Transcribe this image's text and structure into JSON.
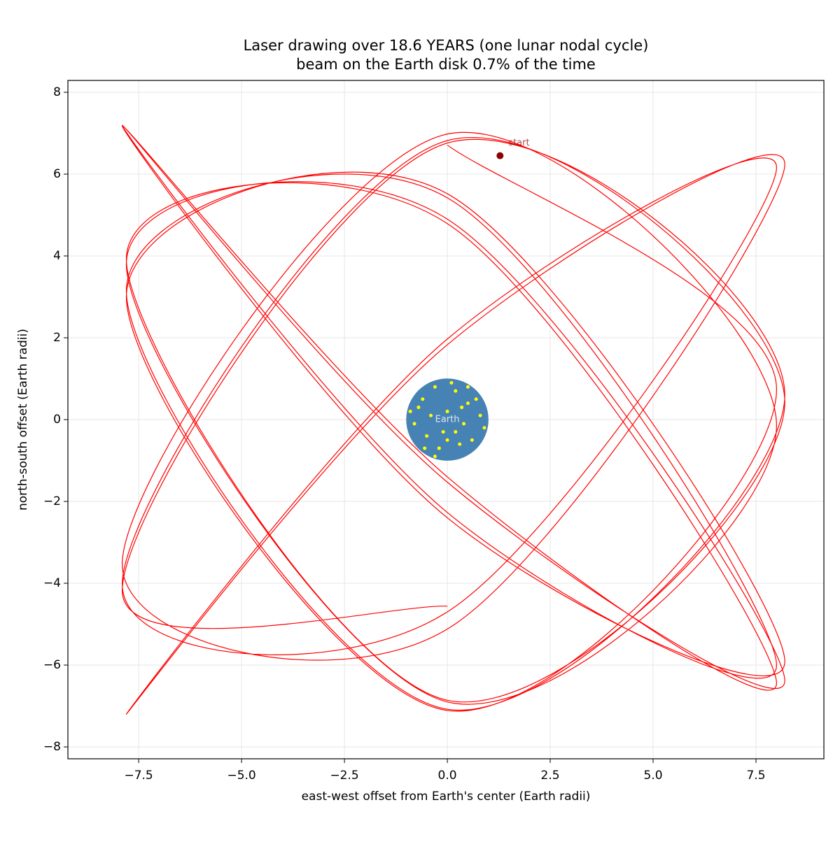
{
  "chart_data": {
    "type": "line",
    "title": "Laser drawing over 18.6 YEARS (one lunar nodal cycle)",
    "subtitle": "beam on the Earth disk 0.7% of the time",
    "xlabel": "east-west offset from Earth's center  (Earth radii)",
    "ylabel": "north-south offset  (Earth radii)",
    "xlim": [
      -9.22,
      9.15
    ],
    "ylim": [
      -8.29,
      8.29
    ],
    "xticks": [
      {
        "value": -7.5,
        "label": "−7.5"
      },
      {
        "value": -5,
        "label": "−5.0"
      },
      {
        "value": -2.5,
        "label": "−2.5"
      },
      {
        "value": 0,
        "label": "0.0"
      },
      {
        "value": 2.5,
        "label": "2.5"
      },
      {
        "value": 5,
        "label": "5.0"
      },
      {
        "value": 7.5,
        "label": "7.5"
      }
    ],
    "yticks": [
      {
        "value": -8,
        "label": "−8"
      },
      {
        "value": -6,
        "label": "−6"
      },
      {
        "value": -4,
        "label": "−4"
      },
      {
        "value": -2,
        "label": "−2"
      },
      0,
      2,
      4,
      6,
      8
    ],
    "grid": true,
    "trace": {
      "color": "#ff0000",
      "x": [
        0,
        8.0,
        0,
        -7.8,
        0,
        8.2,
        0,
        -7.9,
        0,
        8.0,
        0,
        -7.8,
        0,
        8.2,
        0,
        -7.9,
        0,
        8.0,
        0,
        -7.8,
        0,
        8.2,
        0,
        -7.9,
        0,
        8.0,
        0,
        -7.8,
        0,
        8.2,
        0,
        -7.9,
        0,
        8.0,
        0,
        -7.8,
        0,
        8.2,
        0,
        -7.9,
        0
      ],
      "y": [
        6.71,
        0.74,
        -7.11,
        3.0,
        5.52,
        -5.91,
        -2.4,
        7.18,
        -1.4,
        -6.44,
        4.79,
        3.92,
        -6.86,
        0.42,
        6.82,
        -4.02,
        -4.7,
        6.16,
        1.97,
        -7.2,
        1.83,
        6.24,
        -5.12,
        -3.53,
        6.98,
        -0.15,
        -6.9,
        3.8,
        4.9,
        -6.38,
        -1.53,
        7.19,
        -2.27,
        -6.0,
        5.42,
        3.14,
        -7.08,
        0.6,
        6.76,
        -4.17,
        -4.56
      ]
    },
    "earth": {
      "center": [
        0,
        0
      ],
      "radius": 1,
      "color": "#4682b4",
      "label": "Earth"
    },
    "hits": {
      "color": "#ffff00",
      "x": [
        -0.6,
        -0.3,
        0.2,
        0.5,
        0.8,
        -0.8,
        -0.5,
        -0.2,
        0.3,
        0.6,
        0,
        -0.1,
        0.4,
        -0.4,
        0.1,
        -0.7,
        0.7,
        -0.3,
        0.2,
        0.5,
        -0.9,
        0.9,
        0,
        0.35,
        -0.55
      ],
      "y": [
        0.5,
        0.8,
        0.7,
        0.4,
        0.1,
        -0.1,
        -0.4,
        -0.7,
        -0.6,
        -0.5,
        0.2,
        -0.3,
        -0.1,
        0.1,
        0.9,
        0.3,
        0.5,
        -0.9,
        -0.3,
        0.8,
        0.2,
        -0.2,
        -0.5,
        0.3,
        -0.7
      ]
    },
    "start": {
      "x": 1.28,
      "y": 6.45,
      "label": "start",
      "color": "#8b0000"
    }
  }
}
